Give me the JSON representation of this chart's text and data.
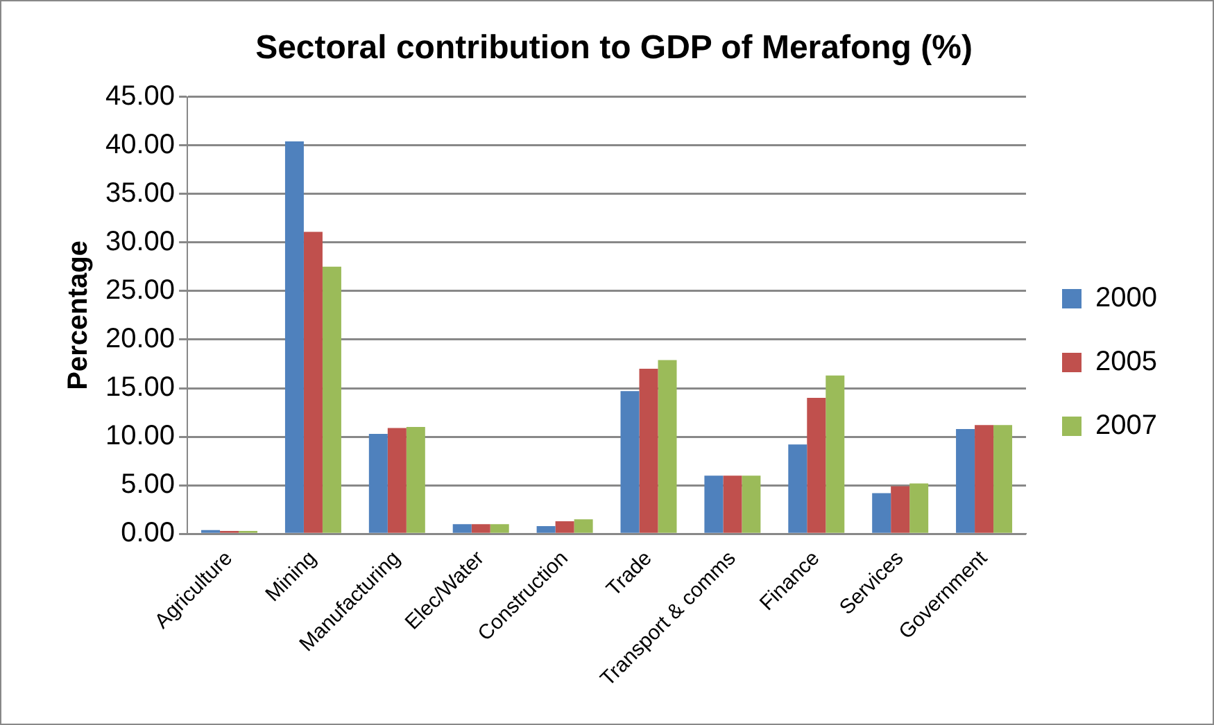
{
  "chart_data": {
    "type": "bar",
    "title": "Sectoral contribution to GDP of Merafong (%)",
    "ylabel": "Percentage",
    "categories": [
      "Agriculture",
      "Mining",
      "Manufacturing",
      "Elec/Water",
      "Construction",
      "Trade",
      "Transport & comms",
      "Finance",
      "Services",
      "Government"
    ],
    "series": [
      {
        "name": "2000",
        "color": "#4f81bd",
        "values": [
          0.4,
          40.4,
          10.3,
          1.0,
          0.8,
          14.7,
          6.0,
          9.2,
          4.2,
          10.8
        ]
      },
      {
        "name": "2005",
        "color": "#c0504d",
        "values": [
          0.3,
          31.1,
          10.9,
          1.0,
          1.3,
          17.0,
          6.0,
          14.0,
          4.9,
          11.2
        ]
      },
      {
        "name": "2007",
        "color": "#9bbb59",
        "values": [
          0.3,
          27.5,
          11.0,
          1.0,
          1.5,
          17.9,
          6.0,
          16.3,
          5.2,
          11.2
        ]
      }
    ],
    "ylim": [
      0,
      45
    ],
    "yticks": [
      {
        "value": 0,
        "label": "0.00"
      },
      {
        "value": 5,
        "label": "5.00"
      },
      {
        "value": 10,
        "label": "10.00"
      },
      {
        "value": 15,
        "label": "15.00"
      },
      {
        "value": 20,
        "label": "20.00"
      },
      {
        "value": 25,
        "label": "25.00"
      },
      {
        "value": 30,
        "label": "30.00"
      },
      {
        "value": 35,
        "label": "35.00"
      },
      {
        "value": 40,
        "label": "40.00"
      },
      {
        "value": 45,
        "label": "45.00"
      }
    ],
    "grid": "y",
    "legend": "right"
  }
}
